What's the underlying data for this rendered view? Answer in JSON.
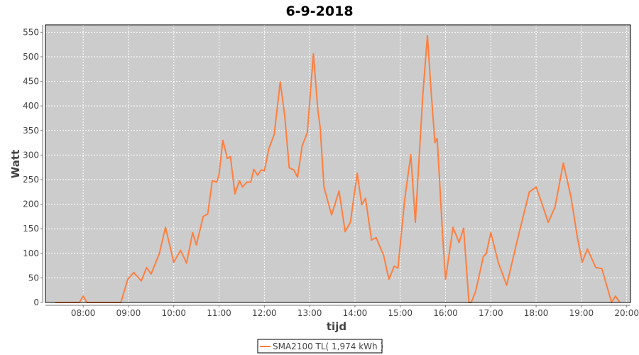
{
  "chart_data": {
    "type": "line",
    "title": "6-9-2018",
    "xlabel": "tijd",
    "ylabel": "Watt",
    "xlim": [
      "07:10",
      "20:05"
    ],
    "ylim": [
      0,
      565
    ],
    "x_ticks": [
      "08:00",
      "09:00",
      "10:00",
      "11:00",
      "12:00",
      "13:00",
      "14:00",
      "15:00",
      "16:00",
      "17:00",
      "18:00",
      "19:00",
      "20:00"
    ],
    "y_ticks": [
      0,
      50,
      100,
      150,
      200,
      250,
      300,
      350,
      400,
      450,
      500,
      550
    ],
    "grid": true,
    "legend_position": "bottom",
    "colors": {
      "series": "#ff7f3f",
      "plot_background": "#cccccc",
      "grid": "#ffffff"
    },
    "series": [
      {
        "name": "SMA2100 TL( 1,974 kWh )",
        "points": [
          [
            "07:23",
            0
          ],
          [
            "07:55",
            0
          ],
          [
            "08:00",
            13
          ],
          [
            "08:05",
            0
          ],
          [
            "08:50",
            0
          ],
          [
            "08:59",
            47
          ],
          [
            "09:07",
            61
          ],
          [
            "09:17",
            44
          ],
          [
            "09:24",
            71
          ],
          [
            "09:30",
            58
          ],
          [
            "09:41",
            100
          ],
          [
            "09:49",
            153
          ],
          [
            "10:00",
            82
          ],
          [
            "10:09",
            106
          ],
          [
            "10:17",
            80
          ],
          [
            "10:25",
            142
          ],
          [
            "10:30",
            117
          ],
          [
            "10:39",
            175
          ],
          [
            "10:45",
            180
          ],
          [
            "10:51",
            248
          ],
          [
            "10:57",
            245
          ],
          [
            "11:00",
            260
          ],
          [
            "11:05",
            330
          ],
          [
            "11:11",
            293
          ],
          [
            "11:15",
            297
          ],
          [
            "11:21",
            221
          ],
          [
            "11:27",
            248
          ],
          [
            "11:31",
            235
          ],
          [
            "11:37",
            245
          ],
          [
            "11:42",
            245
          ],
          [
            "11:46",
            271
          ],
          [
            "11:51",
            259
          ],
          [
            "11:56",
            270
          ],
          [
            "12:00",
            268
          ],
          [
            "12:06",
            313
          ],
          [
            "12:13",
            342
          ],
          [
            "12:21",
            449
          ],
          [
            "12:27",
            380
          ],
          [
            "12:33",
            274
          ],
          [
            "12:39",
            270
          ],
          [
            "12:44",
            255
          ],
          [
            "12:50",
            318
          ],
          [
            "12:57",
            346
          ],
          [
            "13:05",
            506
          ],
          [
            "13:11",
            390
          ],
          [
            "13:14",
            356
          ],
          [
            "13:19",
            235
          ],
          [
            "13:29",
            178
          ],
          [
            "13:39",
            227
          ],
          [
            "13:47",
            144
          ],
          [
            "13:54",
            163
          ],
          [
            "14:03",
            263
          ],
          [
            "14:09",
            199
          ],
          [
            "14:14",
            212
          ],
          [
            "14:22",
            127
          ],
          [
            "14:28",
            132
          ],
          [
            "14:38",
            96
          ],
          [
            "14:45",
            47
          ],
          [
            "14:52",
            74
          ],
          [
            "14:57",
            70
          ],
          [
            "15:06",
            211
          ],
          [
            "15:14",
            301
          ],
          [
            "15:20",
            163
          ],
          [
            "15:30",
            424
          ],
          [
            "15:36",
            543
          ],
          [
            "15:41",
            428
          ],
          [
            "15:46",
            325
          ],
          [
            "15:49",
            334
          ],
          [
            "15:56",
            139
          ],
          [
            "16:00",
            47
          ],
          [
            "16:10",
            153
          ],
          [
            "16:18",
            122
          ],
          [
            "16:24",
            151
          ],
          [
            "16:31",
            0
          ],
          [
            "16:34",
            0
          ],
          [
            "16:40",
            23
          ],
          [
            "16:50",
            93
          ],
          [
            "16:54",
            100
          ],
          [
            "17:00",
            142
          ],
          [
            "17:10",
            81
          ],
          [
            "17:21",
            35
          ],
          [
            "17:34",
            120
          ],
          [
            "17:42",
            170
          ],
          [
            "17:51",
            225
          ],
          [
            "18:00",
            235
          ],
          [
            "18:06",
            209
          ],
          [
            "18:16",
            163
          ],
          [
            "18:25",
            194
          ],
          [
            "18:36",
            284
          ],
          [
            "18:46",
            216
          ],
          [
            "18:55",
            129
          ],
          [
            "19:01",
            82
          ],
          [
            "19:08",
            109
          ],
          [
            "19:19",
            71
          ],
          [
            "19:27",
            69
          ],
          [
            "19:40",
            0
          ],
          [
            "19:45",
            13
          ],
          [
            "19:51",
            0
          ]
        ]
      }
    ]
  }
}
